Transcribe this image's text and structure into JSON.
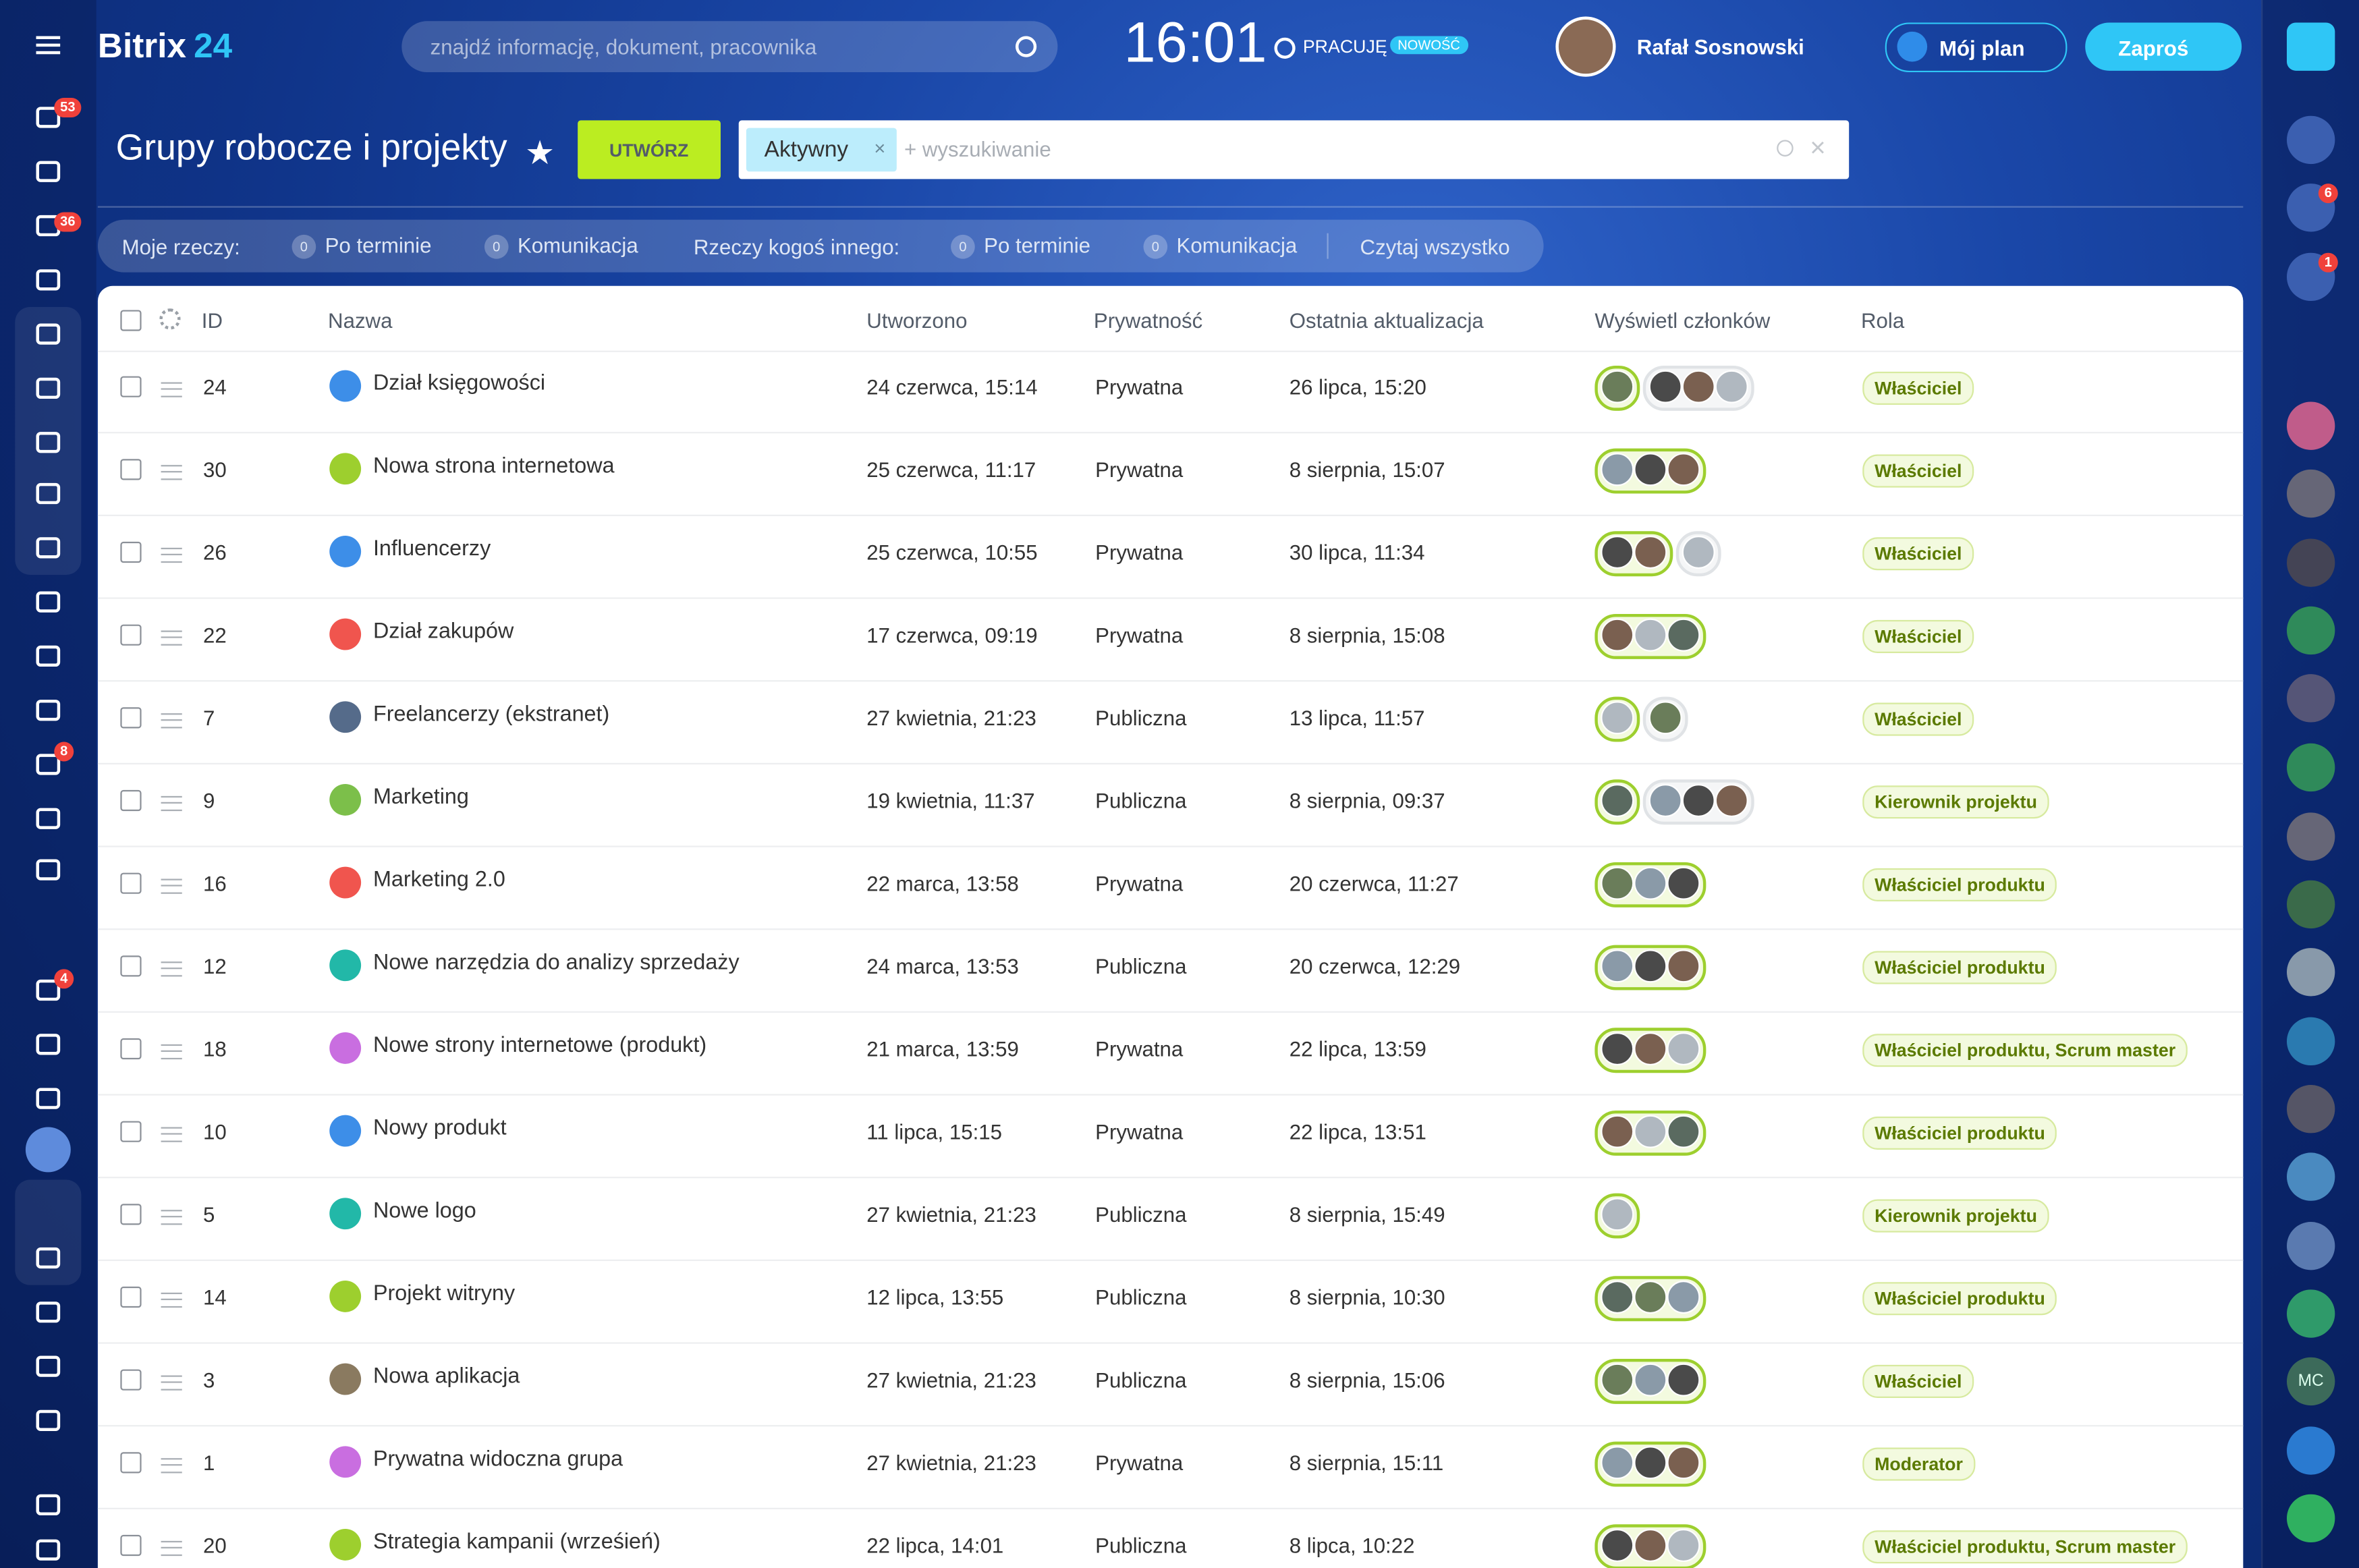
{
  "header": {
    "logo_text": "Bitrix",
    "logo_num": "24",
    "search_placeholder": "znajdź informację, dokument, pracownika",
    "time": "16:01",
    "status": "PRACUJĘ",
    "status_badge": "NOWOŚĆ",
    "user_name": "Rafał Sosnowski",
    "plan_button": "Mój plan",
    "invite_button": "Zaproś"
  },
  "left_sidebar": {
    "badges": [
      53,
      36,
      8,
      4
    ]
  },
  "right_sidebar": {
    "badges": [
      6,
      1
    ],
    "avatar_initials": "MC"
  },
  "page": {
    "title": "Grupy robocze i projekty",
    "create_button": "UTWÓRZ",
    "filter_chip": "Aktywny",
    "filter_placeholder": "+ wyszukiwanie"
  },
  "counters": {
    "my_label": "Moje rzeczy:",
    "my_items": [
      {
        "count": 0,
        "label": "Po terminie"
      },
      {
        "count": 0,
        "label": "Komunikacja"
      }
    ],
    "others_label": "Rzeczy kogoś innego:",
    "others_items": [
      {
        "count": 0,
        "label": "Po terminie"
      },
      {
        "count": 0,
        "label": "Komunikacja"
      }
    ],
    "read_all": "Czytaj wszystko"
  },
  "table": {
    "headers": [
      "ID",
      "Nazwa",
      "Utworzono",
      "Prywatność",
      "Ostatnia aktualizacja",
      "Wyświetl członków",
      "Rola"
    ],
    "rows": [
      {
        "id": 24,
        "name": "Dział księgowości",
        "created": "24 czerwca, 15:14",
        "privacy": "Prywatna",
        "updated": "26 lipca, 15:20",
        "role": "Właściciel"
      },
      {
        "id": 30,
        "name": "Nowa strona internetowa",
        "created": "25 czerwca, 11:17",
        "privacy": "Prywatna",
        "updated": "8 sierpnia, 15:07",
        "role": "Właściciel"
      },
      {
        "id": 26,
        "name": "Influencerzy",
        "created": "25 czerwca, 10:55",
        "privacy": "Prywatna",
        "updated": "30 lipca, 11:34",
        "role": "Właściciel"
      },
      {
        "id": 22,
        "name": "Dział zakupów",
        "created": "17 czerwca, 09:19",
        "privacy": "Prywatna",
        "updated": "8 sierpnia, 15:08",
        "role": "Właściciel"
      },
      {
        "id": 7,
        "name": "Freelancerzy (ekstranet)",
        "created": "27 kwietnia, 21:23",
        "privacy": "Publiczna",
        "updated": "13 lipca, 11:57",
        "role": "Właściciel"
      },
      {
        "id": 9,
        "name": "Marketing",
        "created": "19 kwietnia, 11:37",
        "privacy": "Publiczna",
        "updated": "8 sierpnia, 09:37",
        "role": "Kierownik projektu"
      },
      {
        "id": 16,
        "name": "Marketing 2.0",
        "created": "22 marca, 13:58",
        "privacy": "Prywatna",
        "updated": "20 czerwca, 11:27",
        "role": "Właściciel produktu"
      },
      {
        "id": 12,
        "name": "Nowe narzędzia do analizy sprzedaży",
        "created": "24 marca, 13:53",
        "privacy": "Publiczna",
        "updated": "20 czerwca, 12:29",
        "role": "Właściciel produktu"
      },
      {
        "id": 18,
        "name": "Nowe strony internetowe (produkt)",
        "created": "21 marca, 13:59",
        "privacy": "Prywatna",
        "updated": "22 lipca, 13:59",
        "role": "Właściciel produktu, Scrum master"
      },
      {
        "id": 10,
        "name": "Nowy produkt",
        "created": "11 lipca, 15:15",
        "privacy": "Prywatna",
        "updated": "22 lipca, 13:51",
        "role": "Właściciel produktu"
      },
      {
        "id": 5,
        "name": "Nowe logo",
        "created": "27 kwietnia, 21:23",
        "privacy": "Publiczna",
        "updated": "8 sierpnia, 15:49",
        "role": "Kierownik projektu"
      },
      {
        "id": 14,
        "name": "Projekt witryny",
        "created": "12 lipca, 13:55",
        "privacy": "Publiczna",
        "updated": "8 sierpnia, 10:30",
        "role": "Właściciel produktu"
      },
      {
        "id": 3,
        "name": "Nowa aplikacja",
        "created": "27 kwietnia, 21:23",
        "privacy": "Publiczna",
        "updated": "8 sierpnia, 15:06",
        "role": "Właściciel"
      },
      {
        "id": 1,
        "name": "Prywatna widoczna grupa",
        "created": "27 kwietnia, 21:23",
        "privacy": "Prywatna",
        "updated": "8 sierpnia, 15:11",
        "role": "Moderator"
      },
      {
        "id": 20,
        "name": "Strategia kampanii (wrześień)",
        "created": "22 lipca, 14:01",
        "privacy": "Publiczna",
        "updated": "8 lipca, 10:22",
        "role": "Właściciel produktu, Scrum master"
      }
    ]
  }
}
